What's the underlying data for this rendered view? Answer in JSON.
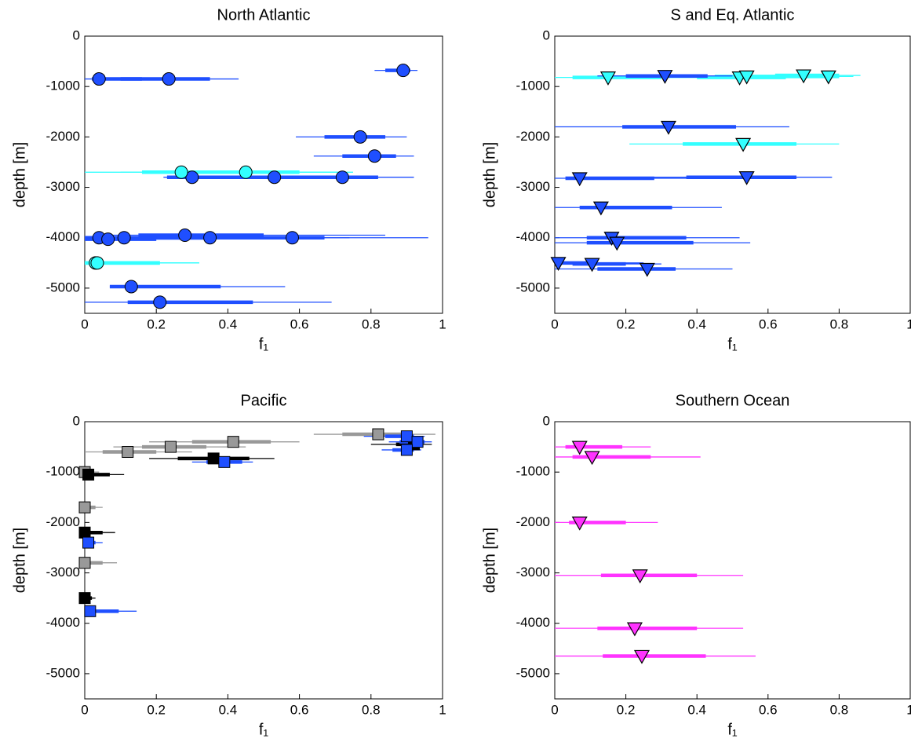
{
  "chart_data": [
    {
      "type": "scatter",
      "title": "North Atlantic",
      "xlabel": "f₁",
      "ylabel": "depth [m]",
      "xlim": [
        0,
        1
      ],
      "ylim": [
        -5500,
        0
      ],
      "xticks": [
        0,
        0.2,
        0.4,
        0.6,
        0.8,
        1
      ],
      "yticks": [
        -5000,
        -4000,
        -3000,
        -2000,
        -1000,
        0
      ],
      "series": [
        {
          "color": "#1f4fff",
          "marker": "circle",
          "x": [
            0.04,
            0.235,
            0.89,
            0.77,
            0.81,
            0.3,
            0.53,
            0.72,
            0.04,
            0.065,
            0.11,
            0.28,
            0.35,
            0.58,
            0.13,
            0.21
          ],
          "values": [
            -850,
            -850,
            -680,
            -2000,
            -2380,
            -2800,
            -2800,
            -2800,
            -4000,
            -4030,
            -4000,
            -3950,
            -4000,
            -4000,
            -4970,
            -5280
          ],
          "thick": [
            [
              0.02,
              0.16
            ],
            [
              0.1,
              0.35
            ],
            [
              0.84,
              0.91
            ],
            [
              0.67,
              0.84
            ],
            [
              0.72,
              0.87
            ],
            [
              0.23,
              0.38
            ],
            [
              0.36,
              0.72
            ],
            [
              0.58,
              0.82
            ],
            [
              0,
              0.1
            ],
            [
              0,
              0.2
            ],
            [
              0.05,
              0.3
            ],
            [
              0.15,
              0.5
            ],
            [
              0.2,
              0.62
            ],
            [
              0.4,
              0.67
            ],
            [
              0.07,
              0.38
            ],
            [
              0.12,
              0.47
            ]
          ],
          "thin": [
            [
              0,
              0.2
            ],
            [
              0.02,
              0.43
            ],
            [
              0.81,
              0.93
            ],
            [
              0.59,
              0.9
            ],
            [
              0.64,
              0.92
            ],
            [
              0.22,
              0.45
            ],
            [
              0.25,
              0.8
            ],
            [
              0.46,
              0.92
            ],
            [
              0,
              0.2
            ],
            [
              0,
              0.35
            ],
            [
              0,
              0.5
            ],
            [
              0.05,
              0.84
            ],
            [
              0.1,
              0.74
            ],
            [
              0.25,
              0.96
            ],
            [
              0.07,
              0.56
            ],
            [
              0,
              0.69
            ]
          ]
        },
        {
          "color": "#33ffff",
          "marker": "circle",
          "x": [
            0.27,
            0.45,
            0.03,
            0.035
          ],
          "values": [
            -2700,
            -2700,
            -4500,
            -4500
          ],
          "thick": [
            [
              0.16,
              0.6
            ],
            [
              0.3,
              0.6
            ],
            [
              0,
              0.21
            ],
            [
              0,
              0.21
            ]
          ],
          "thin": [
            [
              0,
              0.72
            ],
            [
              0.1,
              0.75
            ],
            [
              0,
              0.32
            ],
            [
              0,
              0.32
            ]
          ]
        }
      ]
    },
    {
      "type": "scatter",
      "title": "S and Eq. Atlantic",
      "xlabel": "f₁",
      "ylabel": "depth [m]",
      "xlim": [
        0,
        1
      ],
      "ylim": [
        -5500,
        0
      ],
      "xticks": [
        0,
        0.2,
        0.4,
        0.6,
        0.8,
        1
      ],
      "yticks": [
        -5000,
        -4000,
        -3000,
        -2000,
        -1000,
        0
      ],
      "series": [
        {
          "color": "#33ffff",
          "marker": "triangle",
          "x": [
            0.15,
            0.52,
            0.54,
            0.7,
            0.77,
            0.53
          ],
          "values": [
            -820,
            -820,
            -800,
            -780,
            -800,
            -2140
          ],
          "thick": [
            [
              0.05,
              0.3
            ],
            [
              0.4,
              0.65
            ],
            [
              0.45,
              0.68
            ],
            [
              0.62,
              0.8
            ],
            [
              0.68,
              0.8
            ],
            [
              0.36,
              0.68
            ]
          ],
          "thin": [
            [
              0,
              0.4
            ],
            [
              0.3,
              0.72
            ],
            [
              0.35,
              0.75
            ],
            [
              0.55,
              0.86
            ],
            [
              0.6,
              0.84
            ],
            [
              0.21,
              0.8
            ]
          ]
        },
        {
          "color": "#1f4fff",
          "marker": "triangle",
          "x": [
            0.31,
            0.32,
            0.07,
            0.54,
            0.13,
            0.16,
            0.175,
            0.01,
            0.105,
            0.26
          ],
          "values": [
            -790,
            -1800,
            -2820,
            -2800,
            -3400,
            -4000,
            -4100,
            -4500,
            -4520,
            -4620
          ],
          "thick": [
            [
              0.2,
              0.43
            ],
            [
              0.19,
              0.51
            ],
            [
              0.03,
              0.28
            ],
            [
              0.37,
              0.68
            ],
            [
              0.07,
              0.33
            ],
            [
              0.09,
              0.37
            ],
            [
              0.09,
              0.39
            ],
            [
              0,
              0.12
            ],
            [
              0.05,
              0.2
            ],
            [
              0.12,
              0.34
            ]
          ],
          "thin": [
            [
              0.12,
              0.5
            ],
            [
              0,
              0.66
            ],
            [
              0,
              0.45
            ],
            [
              0.2,
              0.78
            ],
            [
              0,
              0.47
            ],
            [
              0,
              0.52
            ],
            [
              0,
              0.55
            ],
            [
              0,
              0.25
            ],
            [
              0,
              0.3
            ],
            [
              0,
              0.5
            ]
          ]
        }
      ]
    },
    {
      "type": "scatter",
      "title": "Pacific",
      "xlabel": "f₁",
      "ylabel": "depth [m]",
      "xlim": [
        0,
        1
      ],
      "ylim": [
        -5500,
        0
      ],
      "xticks": [
        0,
        0.2,
        0.4,
        0.6,
        0.8,
        1
      ],
      "yticks": [
        -5000,
        -4000,
        -3000,
        -2000,
        -1000,
        0
      ],
      "series": [
        {
          "color": "#999999",
          "marker": "square",
          "x": [
            0.82,
            0.415,
            0.24,
            0.12,
            0,
            0,
            0
          ],
          "values": [
            -250,
            -400,
            -500,
            -600,
            -1000,
            -1700,
            -2800
          ],
          "thick": [
            [
              0.72,
              0.9
            ],
            [
              0.3,
              0.52
            ],
            [
              0.16,
              0.34
            ],
            [
              0.05,
              0.2
            ],
            [
              0,
              0.02
            ],
            [
              0,
              0.03
            ],
            [
              0,
              0.05
            ]
          ],
          "thin": [
            [
              0.64,
              0.98
            ],
            [
              0.18,
              0.6
            ],
            [
              0.08,
              0.45
            ],
            [
              0,
              0.3
            ],
            [
              0,
              0.04
            ],
            [
              0,
              0.05
            ],
            [
              0,
              0.09
            ]
          ]
        },
        {
          "color": "#000000",
          "marker": "square",
          "x": [
            0.92,
            0.36,
            0.01,
            0,
            0
          ],
          "values": [
            -450,
            -730,
            -1050,
            -2200,
            -3500
          ],
          "thick": [
            [
              0.87,
              0.94
            ],
            [
              0.26,
              0.46
            ],
            [
              0.01,
              0.07
            ],
            [
              0,
              0.05
            ],
            [
              0,
              0.02
            ]
          ],
          "thin": [
            [
              0.8,
              0.97
            ],
            [
              0.18,
              0.53
            ],
            [
              0,
              0.11
            ],
            [
              0,
              0.085
            ],
            [
              0,
              0.03
            ]
          ]
        },
        {
          "color": "#1f4fff",
          "marker": "square",
          "x": [
            0.9,
            0.93,
            0.9,
            0.39,
            0.01,
            0.015
          ],
          "values": [
            -290,
            -400,
            -560,
            -800,
            -2400,
            -3760
          ],
          "thick": [
            [
              0.84,
              0.92
            ],
            [
              0.88,
              0.95
            ],
            [
              0.86,
              0.92
            ],
            [
              0.34,
              0.44
            ],
            [
              0,
              0.03
            ],
            [
              0.02,
              0.095
            ]
          ],
          "thin": [
            [
              0.78,
              0.95
            ],
            [
              0.85,
              0.97
            ],
            [
              0.83,
              0.94
            ],
            [
              0.3,
              0.47
            ],
            [
              0,
              0.05
            ],
            [
              0,
              0.145
            ]
          ]
        }
      ]
    },
    {
      "type": "scatter",
      "title": "Southern Ocean",
      "xlabel": "f₁",
      "ylabel": "depth [m]",
      "xlim": [
        0,
        1
      ],
      "ylim": [
        -5500,
        0
      ],
      "xticks": [
        0,
        0.2,
        0.4,
        0.6,
        0.8,
        1
      ],
      "yticks": [
        -5000,
        -4000,
        -3000,
        -2000,
        -1000,
        0
      ],
      "series": [
        {
          "color": "#ff33ff",
          "marker": "triangle",
          "x": [
            0.07,
            0.105,
            0.07,
            0.24,
            0.225,
            0.245
          ],
          "values": [
            -500,
            -700,
            -2000,
            -3050,
            -4100,
            -4650
          ],
          "thick": [
            [
              0.03,
              0.19
            ],
            [
              0.05,
              0.27
            ],
            [
              0.04,
              0.2
            ],
            [
              0.13,
              0.4
            ],
            [
              0.12,
              0.4
            ],
            [
              0.135,
              0.425
            ]
          ],
          "thin": [
            [
              0,
              0.27
            ],
            [
              0,
              0.41
            ],
            [
              0,
              0.29
            ],
            [
              0,
              0.53
            ],
            [
              0,
              0.53
            ],
            [
              0,
              0.565
            ]
          ]
        }
      ]
    }
  ]
}
